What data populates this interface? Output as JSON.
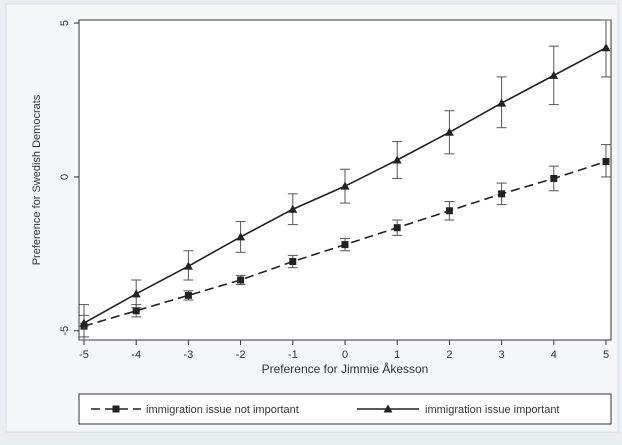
{
  "chart_data": {
    "type": "line",
    "title": "",
    "xlabel": "Preference for Jimmie Åkesson",
    "ylabel": "Preference for Swedish Democrats",
    "x": [
      -5,
      -4,
      -3,
      -2,
      -1,
      0,
      1,
      2,
      3,
      4,
      5
    ],
    "xticks": [
      "-5",
      "-4",
      "-3",
      "-2",
      "-1",
      "0",
      "1",
      "2",
      "3",
      "4",
      "5"
    ],
    "yticks": [
      "-5",
      "0",
      "5"
    ],
    "xlim": [
      -5,
      5
    ],
    "ylim": [
      -5.3,
      5.1
    ],
    "grid": false,
    "legend_position": "bottom",
    "series": [
      {
        "name": "immigration issue not important",
        "marker": "square",
        "style": "dashed",
        "color": "#222222",
        "values": [
          -4.85,
          -4.35,
          -3.85,
          -3.35,
          -2.75,
          -2.2,
          -1.65,
          -1.1,
          -0.55,
          -0.05,
          0.5
        ],
        "err_low": [
          -5.2,
          -4.55,
          -4.0,
          -3.5,
          -2.95,
          -2.4,
          -1.9,
          -1.4,
          -0.9,
          -0.45,
          0.0
        ],
        "err_high": [
          -4.5,
          -4.15,
          -3.7,
          -3.2,
          -2.55,
          -2.0,
          -1.4,
          -0.8,
          -0.2,
          0.35,
          1.05
        ]
      },
      {
        "name": "immigration issue important",
        "marker": "triangle",
        "style": "solid",
        "color": "#222222",
        "values": [
          -4.75,
          -3.8,
          -2.9,
          -1.95,
          -1.05,
          -0.3,
          0.55,
          1.45,
          2.4,
          3.3,
          4.2
        ],
        "err_low": [
          -5.3,
          -4.25,
          -3.35,
          -2.45,
          -1.55,
          -0.85,
          -0.05,
          0.75,
          1.6,
          2.35,
          3.25
        ],
        "err_high": [
          -4.15,
          -3.35,
          -2.4,
          -1.45,
          -0.55,
          0.25,
          1.15,
          2.15,
          3.25,
          4.25,
          5.1
        ]
      }
    ]
  }
}
